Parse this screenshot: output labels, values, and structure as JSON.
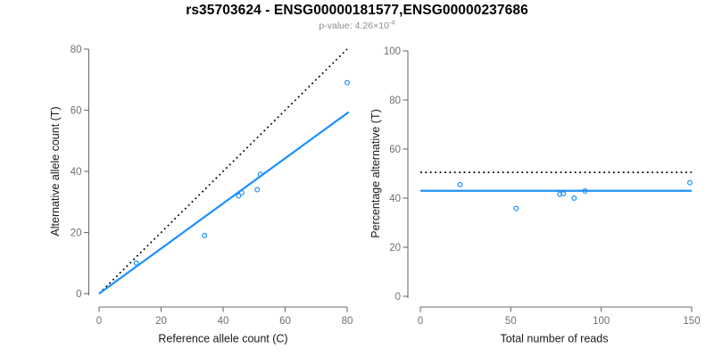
{
  "header": {
    "title": "rs35703624 - ENSG00000181577,ENSG00000237686",
    "subtitle_prefix": "p-value: 4.26×10",
    "subtitle_exponent": "-4"
  },
  "colors": {
    "accent_blue": "#1e90ff",
    "reference_black": "#000000",
    "axis_gray": "#6e6e6e",
    "tick_label_gray": "#707070",
    "subtitle_gray": "#8d8d8d"
  },
  "chart_data": [
    {
      "type": "scatter",
      "title": "",
      "xlabel": "Reference allele count (C)",
      "ylabel": "Alternative allele count (T)",
      "xlim": [
        0,
        80
      ],
      "ylim": [
        0,
        80
      ],
      "x_ticks": [
        0,
        20,
        40,
        60,
        80
      ],
      "y_ticks": [
        0,
        20,
        40,
        60,
        80
      ],
      "grid": false,
      "legend": "none",
      "points": [
        [
          12,
          10
        ],
        [
          34,
          19
        ],
        [
          45,
          32
        ],
        [
          46,
          33
        ],
        [
          51,
          34
        ],
        [
          52,
          39
        ],
        [
          80,
          69
        ]
      ],
      "lines": [
        {
          "name": "identity-line",
          "style": "dotted",
          "color": "#000000",
          "from": [
            0,
            0
          ],
          "to": [
            80,
            80
          ]
        },
        {
          "name": "fit-line",
          "style": "solid",
          "color": "#1e90ff",
          "from": [
            0,
            0
          ],
          "to": [
            80.5,
            59.4
          ]
        }
      ]
    },
    {
      "type": "scatter",
      "title": "",
      "xlabel": "Total number of reads",
      "ylabel": "Percentage alternative (T)",
      "xlim": [
        0,
        150
      ],
      "ylim": [
        0,
        100
      ],
      "x_ticks": [
        0,
        50,
        100,
        150
      ],
      "y_ticks": [
        0,
        20,
        40,
        60,
        80,
        100
      ],
      "grid": false,
      "legend": "none",
      "points": [
        [
          22,
          45.5
        ],
        [
          53,
          35.8
        ],
        [
          77,
          41.6
        ],
        [
          79,
          41.8
        ],
        [
          85,
          40
        ],
        [
          91,
          42.9
        ],
        [
          149,
          46.3
        ]
      ],
      "lines": [
        {
          "name": "fifty-percent-line",
          "style": "dotted",
          "color": "#000000",
          "from": [
            0,
            50.5
          ],
          "to": [
            150,
            50.5
          ]
        },
        {
          "name": "mean-percentage-line",
          "style": "solid",
          "color": "#1e90ff",
          "from": [
            0,
            43
          ],
          "to": [
            150,
            43
          ]
        }
      ]
    }
  ]
}
